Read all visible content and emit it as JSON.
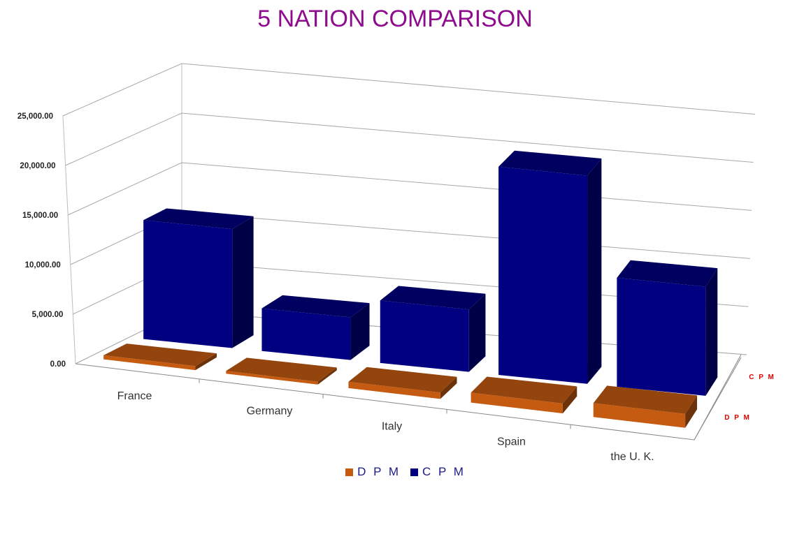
{
  "chart_data": {
    "type": "bar",
    "title": "5 NATION COMPARISON",
    "categories": [
      "France",
      "Germany",
      "Italy",
      "Spain",
      "the U. K."
    ],
    "series": [
      {
        "name": "D P M",
        "axis_label": "D P M",
        "color": "#c55a11",
        "values": [
          400,
          200,
          650,
          1000,
          1400
        ]
      },
      {
        "name": "C P M",
        "axis_label": "C P M",
        "color": "#000080",
        "values": [
          12000,
          4300,
          6300,
          21000,
          11000
        ]
      }
    ],
    "y_ticks": [
      "0.00",
      "5,000.00",
      "10,000.00",
      "15,000.00",
      "20,000.00",
      "25,000.00"
    ],
    "ylim": [
      0,
      25000
    ],
    "grid": true,
    "legend_position": "bottom",
    "projection": "3d-column"
  }
}
